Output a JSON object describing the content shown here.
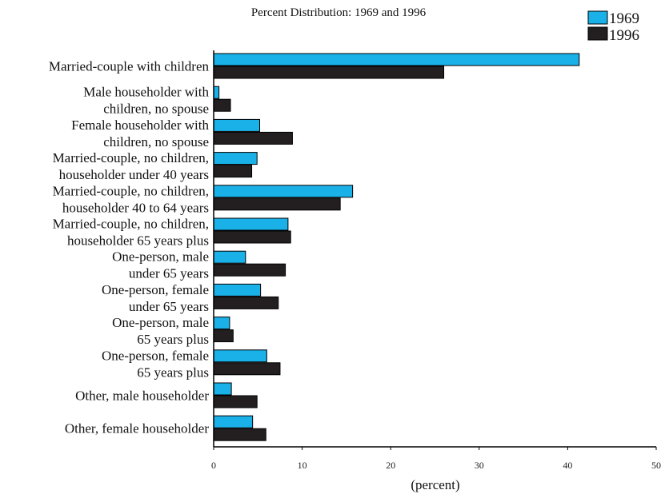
{
  "chart_data": {
    "type": "bar",
    "orientation": "horizontal",
    "title": "Percent Distribution: 1969 and 1996",
    "xlabel": "(percent)",
    "ylabel": "",
    "xlim": [
      0,
      50
    ],
    "xticks": [
      0,
      10,
      20,
      30,
      40,
      50
    ],
    "grid": false,
    "legend_position": "top-right",
    "categories": [
      [
        "Married-couple with children"
      ],
      [
        "Male householder with",
        "children, no spouse"
      ],
      [
        "Female householder with",
        "children, no spouse"
      ],
      [
        "Married-couple, no children,",
        "householder under 40 years"
      ],
      [
        "Married-couple, no children,",
        "householder 40 to 64 years"
      ],
      [
        "Married-couple, no children,",
        "householder 65 years plus"
      ],
      [
        "One-person, male",
        "under 65 years"
      ],
      [
        "One-person, female",
        "under 65 years"
      ],
      [
        "One-person, male",
        "65 years plus"
      ],
      [
        "One-person, female",
        "65 years plus"
      ],
      [
        "Other, male householder"
      ],
      [
        "Other, female householder"
      ]
    ],
    "series": [
      {
        "name": "1969",
        "color": "#1ab0e8",
        "values": [
          41.3,
          0.6,
          5.2,
          4.9,
          15.7,
          8.4,
          3.6,
          5.3,
          1.8,
          6.0,
          2.0,
          4.4
        ]
      },
      {
        "name": "1996",
        "color": "#231f20",
        "values": [
          26.0,
          1.9,
          8.9,
          4.3,
          14.3,
          8.7,
          8.1,
          7.3,
          2.2,
          7.5,
          4.9,
          5.9
        ]
      }
    ]
  }
}
